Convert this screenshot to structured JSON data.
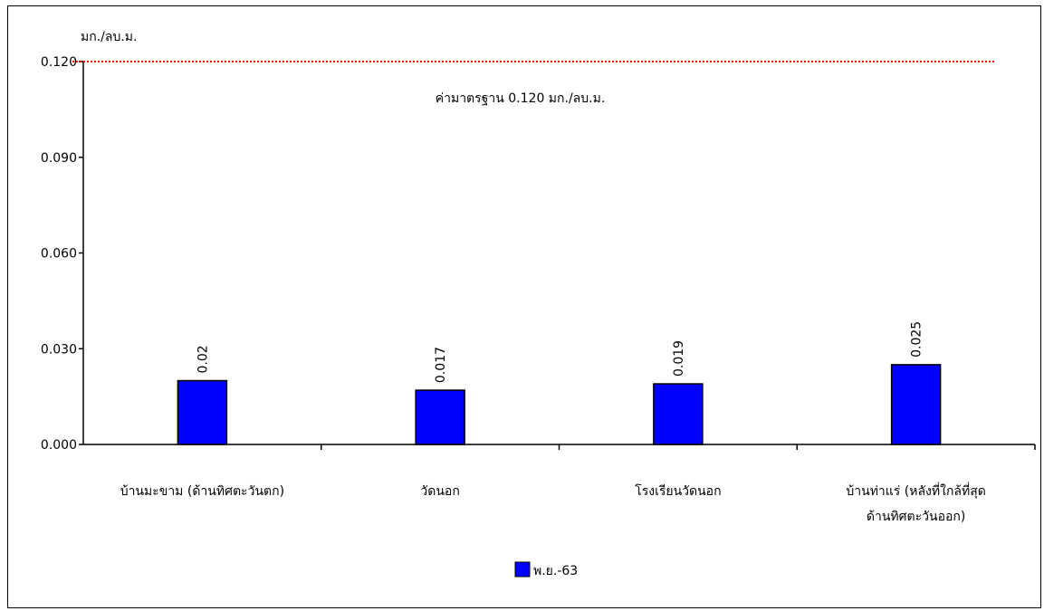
{
  "chart_data": {
    "type": "bar",
    "ylabel": "มก./ลบ.ม.",
    "ylim": [
      0,
      0.12
    ],
    "yticks": [
      "0.000",
      "0.030",
      "0.060",
      "0.090",
      "0.120"
    ],
    "ytick_values": [
      0,
      0.03,
      0.06,
      0.09,
      0.12
    ],
    "categories": [
      [
        "บ้านมะขาม (ด้านทิศตะวันตก)"
      ],
      [
        "วัดนอก"
      ],
      [
        "โรงเรียนวัดนอก"
      ],
      [
        "บ้านท่าแร่ (หลังที่ใกล้ที่สุด",
        "ด้านทิศตะวันออก)"
      ]
    ],
    "series": [
      {
        "name": "พ.ย.-63",
        "values": [
          0.02,
          0.017,
          0.019,
          0.025
        ],
        "labels": [
          "0.02",
          "0.017",
          "0.019",
          "0.025"
        ],
        "color": "#0000ff"
      }
    ],
    "reference_line": {
      "value": 0.12,
      "label": "ค่ามาตรฐาน 0.120 มก./ลบ.ม.",
      "color": "#ff0000"
    },
    "grid": false,
    "legend": "bottom-center"
  }
}
